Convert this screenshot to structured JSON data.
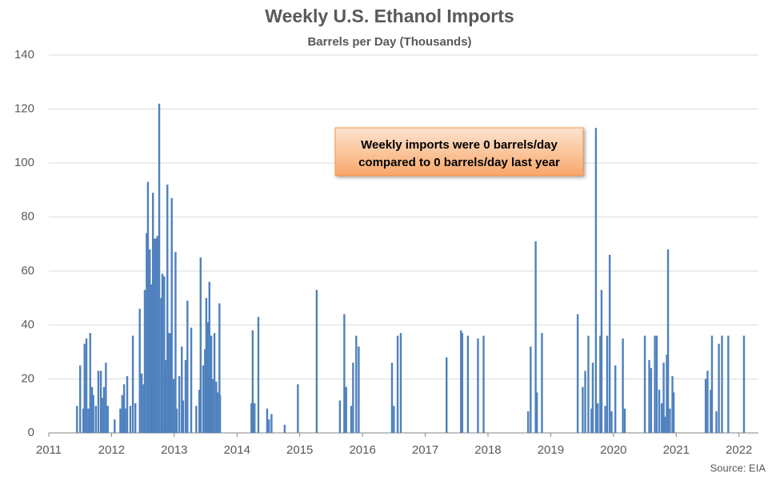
{
  "chart_data": {
    "type": "bar",
    "title": "Weekly U.S. Ethanol Imports",
    "subtitle": "Barrels per Day (Thousands)",
    "annotation": [
      "Weekly imports were 0 barrels/day",
      "compared to 0 barrels/day last year"
    ],
    "source": "Source: EIA",
    "color": "#4f81bd",
    "grid": true,
    "xlim": [
      2011,
      2022.31
    ],
    "xticks": [
      2011,
      2012,
      2013,
      2014,
      2015,
      2016,
      2017,
      2018,
      2019,
      2020,
      2021,
      2022
    ],
    "ylim": [
      0,
      140
    ],
    "yticks": [
      0,
      20,
      40,
      60,
      80,
      100,
      120,
      140
    ],
    "x": [
      2011.45,
      2011.5,
      2011.55,
      2011.57,
      2011.6,
      2011.63,
      2011.66,
      2011.69,
      2011.71,
      2011.75,
      2011.79,
      2011.83,
      2011.85,
      2011.88,
      2011.91,
      2011.94,
      2012.05,
      2012.14,
      2012.17,
      2012.2,
      2012.22,
      2012.25,
      2012.3,
      2012.34,
      2012.38,
      2012.45,
      2012.48,
      2012.51,
      2012.53,
      2012.56,
      2012.58,
      2012.61,
      2012.63,
      2012.66,
      2012.68,
      2012.71,
      2012.73,
      2012.76,
      2012.79,
      2012.81,
      2012.84,
      2012.86,
      2012.89,
      2012.91,
      2012.94,
      2012.96,
      2012.99,
      2013.02,
      2013.04,
      2013.08,
      2013.12,
      2013.14,
      2013.18,
      2013.21,
      2013.27,
      2013.35,
      2013.4,
      2013.42,
      2013.46,
      2013.49,
      2013.51,
      2013.54,
      2013.56,
      2013.59,
      2013.61,
      2013.64,
      2013.67,
      2013.69,
      2013.72,
      2013.73,
      2014.23,
      2014.25,
      2014.28,
      2014.34,
      2014.48,
      2014.51,
      2014.55,
      2014.76,
      2014.97,
      2015.27,
      2015.64,
      2015.71,
      2015.74,
      2015.82,
      2015.85,
      2015.9,
      2015.94,
      2016.47,
      2016.5,
      2016.56,
      2016.61,
      2017.34,
      2017.57,
      2017.59,
      2017.68,
      2017.84,
      2017.93,
      2018.64,
      2018.68,
      2018.76,
      2018.78,
      2018.86,
      2019.43,
      2019.51,
      2019.55,
      2019.6,
      2019.65,
      2019.67,
      2019.72,
      2019.75,
      2019.79,
      2019.81,
      2019.87,
      2019.9,
      2019.94,
      2019.97,
      2020.03,
      2020.15,
      2020.18,
      2020.5,
      2020.57,
      2020.6,
      2020.66,
      2020.69,
      2020.73,
      2020.77,
      2020.8,
      2020.82,
      2020.85,
      2020.87,
      2020.9,
      2020.94,
      2020.96,
      2021.47,
      2021.5,
      2021.55,
      2021.57,
      2021.64,
      2021.68,
      2021.73,
      2021.83,
      2022.08
    ],
    "values": [
      10,
      25,
      9,
      33,
      35,
      9,
      37,
      17,
      14,
      10,
      23,
      23,
      13,
      17,
      26,
      10,
      5,
      9,
      14,
      18,
      9,
      21,
      10,
      36,
      11,
      46,
      22,
      18,
      53,
      74,
      93,
      68,
      55,
      89,
      72,
      72,
      73,
      122,
      50,
      59,
      58,
      27,
      92,
      37,
      37,
      87,
      20,
      67,
      9,
      21,
      32,
      12,
      27,
      49,
      39,
      10,
      16,
      65,
      25,
      31,
      50,
      41,
      56,
      36,
      20,
      37,
      19,
      15,
      48,
      14,
      11,
      38,
      11,
      43,
      9,
      5,
      7,
      3,
      18,
      53,
      12,
      44,
      17,
      10,
      26,
      36,
      32,
      26,
      10,
      36,
      37,
      28,
      38,
      37,
      36,
      35,
      36,
      8,
      32,
      71,
      15,
      37,
      44,
      17,
      23,
      36,
      9,
      26,
      113,
      11,
      36,
      53,
      10,
      36,
      66,
      8,
      25,
      35,
      9,
      36,
      27,
      24,
      36,
      36,
      16,
      11,
      26,
      6,
      29,
      68,
      9,
      21,
      15,
      20,
      23,
      16,
      36,
      8,
      33,
      36,
      36,
      36
    ]
  }
}
